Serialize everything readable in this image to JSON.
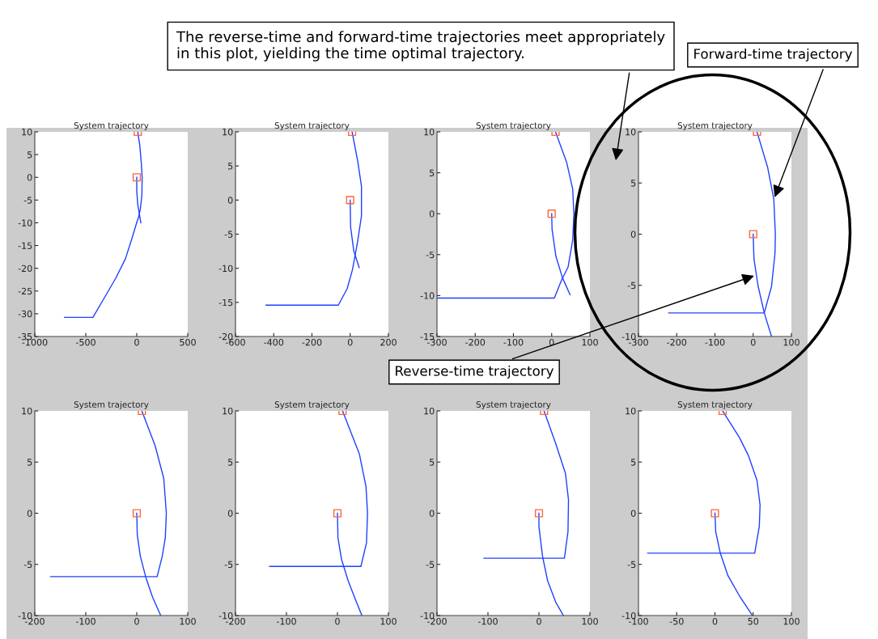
{
  "chart_data": [
    {
      "type": "line",
      "title": "System trajectory",
      "xlim": [
        -1000,
        500
      ],
      "xticks": [
        -1000,
        -500,
        0,
        500
      ],
      "ylim": [
        -35,
        10
      ],
      "yticks": [
        -35,
        -30,
        -25,
        -20,
        -15,
        -10,
        -5,
        0,
        5,
        10
      ],
      "series": [
        {
          "color": "#2040ff",
          "x": [
            10,
            30,
            45,
            53,
            50,
            35,
            15,
            3,
            -44,
            -111,
            -204,
            -310,
            -430,
            -709
          ],
          "values": [
            10,
            7,
            3,
            0,
            -4,
            -7,
            -9,
            -9.7,
            -13.2,
            -17.9,
            -22.1,
            -26.2,
            -30.8,
            -30.8
          ]
        },
        {
          "color": "#2040ff",
          "x": [
            0,
            0,
            10,
            25,
            40
          ],
          "values": [
            0,
            -3,
            -6,
            -8,
            -10
          ]
        },
        {
          "type": "scatter",
          "marker": "square",
          "color": "#ff6633",
          "x": [
            10,
            0
          ],
          "values": [
            10,
            0
          ]
        }
      ]
    },
    {
      "type": "line",
      "title": "System trajectory",
      "xlim": [
        -600,
        200
      ],
      "xticks": [
        -600,
        -400,
        -200,
        0,
        200
      ],
      "ylim": [
        -20,
        10
      ],
      "yticks": [
        -20,
        -15,
        -10,
        -5,
        0,
        5,
        10
      ],
      "series": [
        {
          "color": "#2040ff",
          "x": [
            10,
            40,
            59,
            59,
            40,
            12,
            -16,
            -62,
            -440
          ],
          "values": [
            10,
            5.6,
            2,
            -2.3,
            -5.9,
            -10.2,
            -13,
            -15.4,
            -15.4
          ]
        },
        {
          "color": "#2040ff",
          "x": [
            0,
            2,
            19,
            47
          ],
          "values": [
            0,
            -3.9,
            -7.5,
            -9.9
          ]
        },
        {
          "type": "scatter",
          "marker": "square",
          "color": "#ff6633",
          "x": [
            10,
            0
          ],
          "values": [
            10,
            0
          ]
        }
      ]
    },
    {
      "type": "line",
      "title": "System trajectory",
      "xlim": [
        -300,
        100
      ],
      "xticks": [
        -300,
        -200,
        -100,
        0,
        100
      ],
      "ylim": [
        -15,
        10
      ],
      "yticks": [
        -15,
        -10,
        -5,
        0,
        5,
        10
      ],
      "series": [
        {
          "color": "#2040ff",
          "x": [
            10,
            39,
            55,
            58,
            55,
            43,
            25,
            7,
            -300
          ],
          "values": [
            10,
            6.3,
            3,
            0,
            -3.2,
            -6.5,
            -8.2,
            -10.3,
            -10.3
          ]
        },
        {
          "color": "#2040ff",
          "x": [
            0,
            1,
            11,
            28,
            48
          ],
          "values": [
            0,
            -1.9,
            -5.2,
            -7.8,
            -9.9
          ]
        },
        {
          "type": "scatter",
          "marker": "square",
          "color": "#ff6633",
          "x": [
            10,
            0
          ],
          "values": [
            10,
            0
          ]
        }
      ]
    },
    {
      "type": "line",
      "title": "System trajectory",
      "xlim": [
        -300,
        100
      ],
      "xticks": [
        -300,
        -200,
        -100,
        0,
        100
      ],
      "ylim": [
        -10,
        10
      ],
      "yticks": [
        -10,
        -5,
        0,
        5,
        10
      ],
      "series": [
        {
          "color": "#2040ff",
          "x": [
            10,
            38,
            54,
            58,
            57,
            48,
            29,
            -221
          ],
          "values": [
            10,
            6.5,
            3.4,
            0,
            -1.9,
            -5.1,
            -7.7,
            -7.7
          ]
        },
        {
          "color": "#2040ff",
          "x": [
            0,
            2,
            13,
            29,
            48
          ],
          "values": [
            0,
            -2.4,
            -5.1,
            -7.7,
            -10
          ]
        },
        {
          "type": "scatter",
          "marker": "square",
          "color": "#ff6633",
          "x": [
            10,
            0
          ],
          "values": [
            10,
            0
          ]
        }
      ],
      "annotations": [
        "The reverse-time and forward-time trajectories meet appropriately in this plot, yielding the time optimal trajectory.",
        {
          "text": "Forward-time trajectory",
          "x": 54,
          "y": 3.4
        },
        {
          "text": "Reverse-time trajectory",
          "x": 8,
          "y": -4
        }
      ]
    },
    {
      "type": "line",
      "title": "System trajectory",
      "xlim": [
        -200,
        100
      ],
      "xticks": [
        -200,
        -100,
        0,
        100
      ],
      "ylim": [
        -10,
        10
      ],
      "yticks": [
        -10,
        -5,
        0,
        5,
        10
      ],
      "series": [
        {
          "color": "#2040ff",
          "x": [
            10,
            36,
            53,
            58,
            56,
            50,
            40,
            -169
          ],
          "values": [
            10,
            6.6,
            3.4,
            0,
            -2.4,
            -4.2,
            -6.2,
            -6.2
          ]
        },
        {
          "color": "#2040ff",
          "x": [
            0,
            1,
            7,
            18,
            31,
            47
          ],
          "values": [
            0,
            -2.1,
            -4.2,
            -6.3,
            -8.2,
            -10
          ]
        },
        {
          "type": "scatter",
          "marker": "square",
          "color": "#ff6633",
          "x": [
            10,
            0
          ],
          "values": [
            10,
            0
          ]
        }
      ]
    },
    {
      "type": "line",
      "title": "System trajectory",
      "xlim": [
        -200,
        100
      ],
      "xticks": [
        -200,
        -100,
        0,
        100
      ],
      "ylim": [
        -10,
        10
      ],
      "yticks": [
        -10,
        -5,
        0,
        5,
        10
      ],
      "series": [
        {
          "color": "#2040ff",
          "x": [
            10,
            43,
            56,
            59,
            57,
            46,
            -133
          ],
          "values": [
            10,
            5.8,
            2.6,
            0,
            -2.9,
            -5.2,
            -5.2
          ]
        },
        {
          "color": "#2040ff",
          "x": [
            0,
            1,
            8,
            21,
            35,
            48
          ],
          "values": [
            0,
            -2.4,
            -4.5,
            -6.6,
            -8.4,
            -10
          ]
        },
        {
          "type": "scatter",
          "marker": "square",
          "color": "#ff6633",
          "x": [
            10,
            0
          ],
          "values": [
            10,
            0
          ]
        }
      ]
    },
    {
      "type": "line",
      "title": "System trajectory",
      "xlim": [
        -200,
        100
      ],
      "xticks": [
        -200,
        -100,
        0,
        100
      ],
      "ylim": [
        -10,
        10
      ],
      "yticks": [
        -10,
        -5,
        0,
        5,
        10
      ],
      "series": [
        {
          "color": "#2040ff",
          "x": [
            10,
            33,
            52,
            58,
            57,
            50,
            -108
          ],
          "values": [
            10,
            6.8,
            3.9,
            1.3,
            -1.8,
            -4.4,
            -4.4
          ]
        },
        {
          "color": "#2040ff",
          "x": [
            0,
            0,
            7,
            17,
            33,
            48
          ],
          "values": [
            0,
            -1.3,
            -4.2,
            -6.6,
            -8.7,
            -10
          ]
        },
        {
          "type": "scatter",
          "marker": "square",
          "color": "#ff6633",
          "x": [
            10,
            0
          ],
          "values": [
            10,
            0
          ]
        }
      ]
    },
    {
      "type": "line",
      "title": "System trajectory",
      "xlim": [
        -100,
        100
      ],
      "xticks": [
        -100,
        -50,
        0,
        50,
        100
      ],
      "ylim": [
        -10,
        10
      ],
      "yticks": [
        -10,
        -5,
        0,
        5,
        10
      ],
      "series": [
        {
          "color": "#2040ff",
          "x": [
            10,
            32,
            44,
            55,
            59,
            58,
            52,
            -88
          ],
          "values": [
            10,
            7.4,
            5.6,
            3.2,
            0.8,
            -1.3,
            -3.9,
            -3.9
          ]
        },
        {
          "color": "#2040ff",
          "x": [
            0,
            1,
            7,
            17,
            33,
            49
          ],
          "values": [
            0,
            -1.8,
            -3.9,
            -6.1,
            -8.2,
            -10
          ]
        },
        {
          "type": "scatter",
          "marker": "square",
          "color": "#ff6633",
          "x": [
            10,
            0
          ],
          "values": [
            10,
            0
          ]
        }
      ]
    }
  ]
}
